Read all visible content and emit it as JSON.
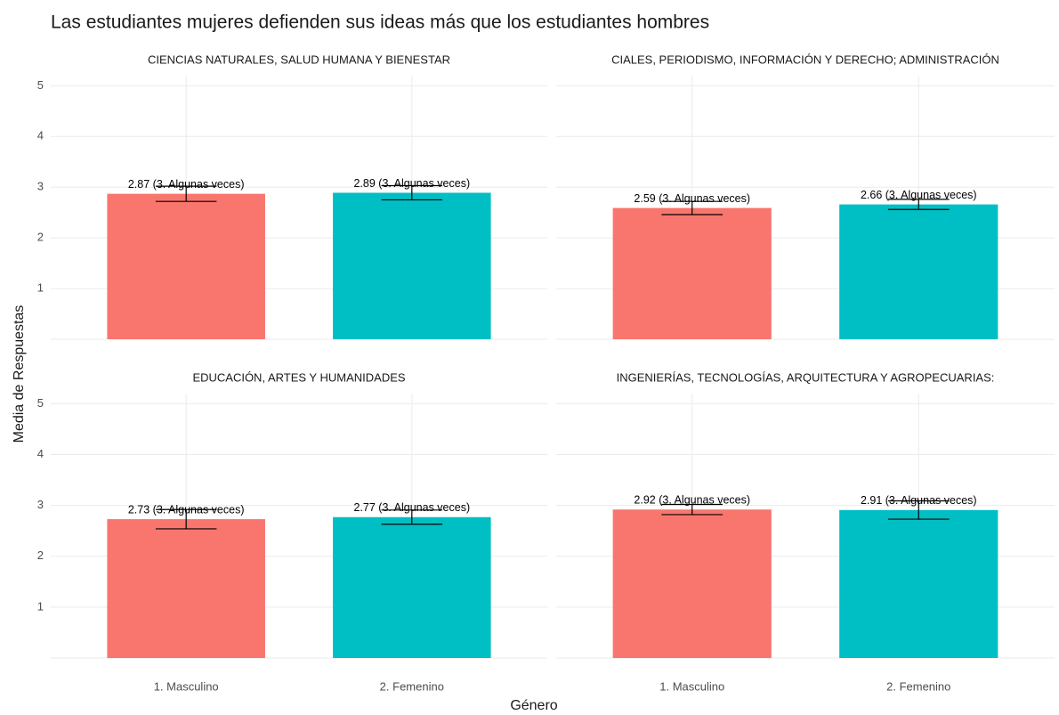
{
  "title": "Las estudiantes mujeres defienden sus ideas más que los estudiantes hombres",
  "x_label": "Género",
  "y_label": "Media de Respuestas",
  "categories": [
    "1. Masculino",
    "2. Femenino"
  ],
  "colors": [
    "#F8766D",
    "#00BFC4"
  ],
  "ylim": [
    0,
    5.2
  ],
  "yticks": [
    1,
    2,
    3,
    4,
    5
  ],
  "grid": true,
  "chart_data": [
    {
      "type": "bar",
      "title": "CIENCIAS NATURALES, SALUD HUMANA Y BIENESTAR",
      "values": [
        2.87,
        2.89
      ],
      "value_labels": [
        "2.87 (3. Algunas veces)",
        "2.89 (3. Algunas veces)"
      ],
      "errors": [
        0.15,
        0.14
      ]
    },
    {
      "type": "bar",
      "title": "CIALES, PERIODISMO, INFORMACIÓN Y DERECHO; ADMINISTRACIÓN",
      "values": [
        2.59,
        2.66
      ],
      "value_labels": [
        "2.59 (3. Algunas veces)",
        "2.66 (3. Algunas veces)"
      ],
      "errors": [
        0.13,
        0.1
      ]
    },
    {
      "type": "bar",
      "title": "EDUCACIÓN, ARTES Y HUMANIDADES",
      "values": [
        2.73,
        2.77
      ],
      "value_labels": [
        "2.73 (3. Algunas veces)",
        "2.77 (3. Algunas veces)"
      ],
      "errors": [
        0.19,
        0.14
      ]
    },
    {
      "type": "bar",
      "title": "INGENIERÍAS, TECNOLOGÍAS, ARQUITECTURA Y AGROPECUARIAS:",
      "values": [
        2.92,
        2.91
      ],
      "value_labels": [
        "2.92 (3. Algunas veces)",
        "2.91 (3. Algunas veces)"
      ],
      "errors": [
        0.1,
        0.18
      ]
    }
  ]
}
